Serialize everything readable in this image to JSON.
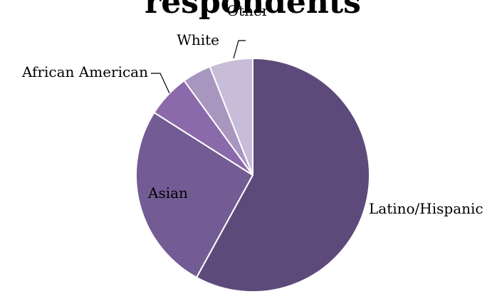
{
  "chart_data": {
    "type": "pie",
    "title": "respondents",
    "start_angle_deg": 0,
    "direction": "clockwise",
    "categories": [
      "Latino/Hispanic",
      "Asian",
      "African American",
      "White",
      "Other"
    ],
    "values": [
      58,
      26,
      6,
      4,
      6
    ],
    "colors": [
      "#5e4a7a",
      "#735b94",
      "#8a6aaa",
      "#a896bf",
      "#c7bdd8"
    ],
    "legend": "none",
    "labels": "outside with leader lines"
  }
}
